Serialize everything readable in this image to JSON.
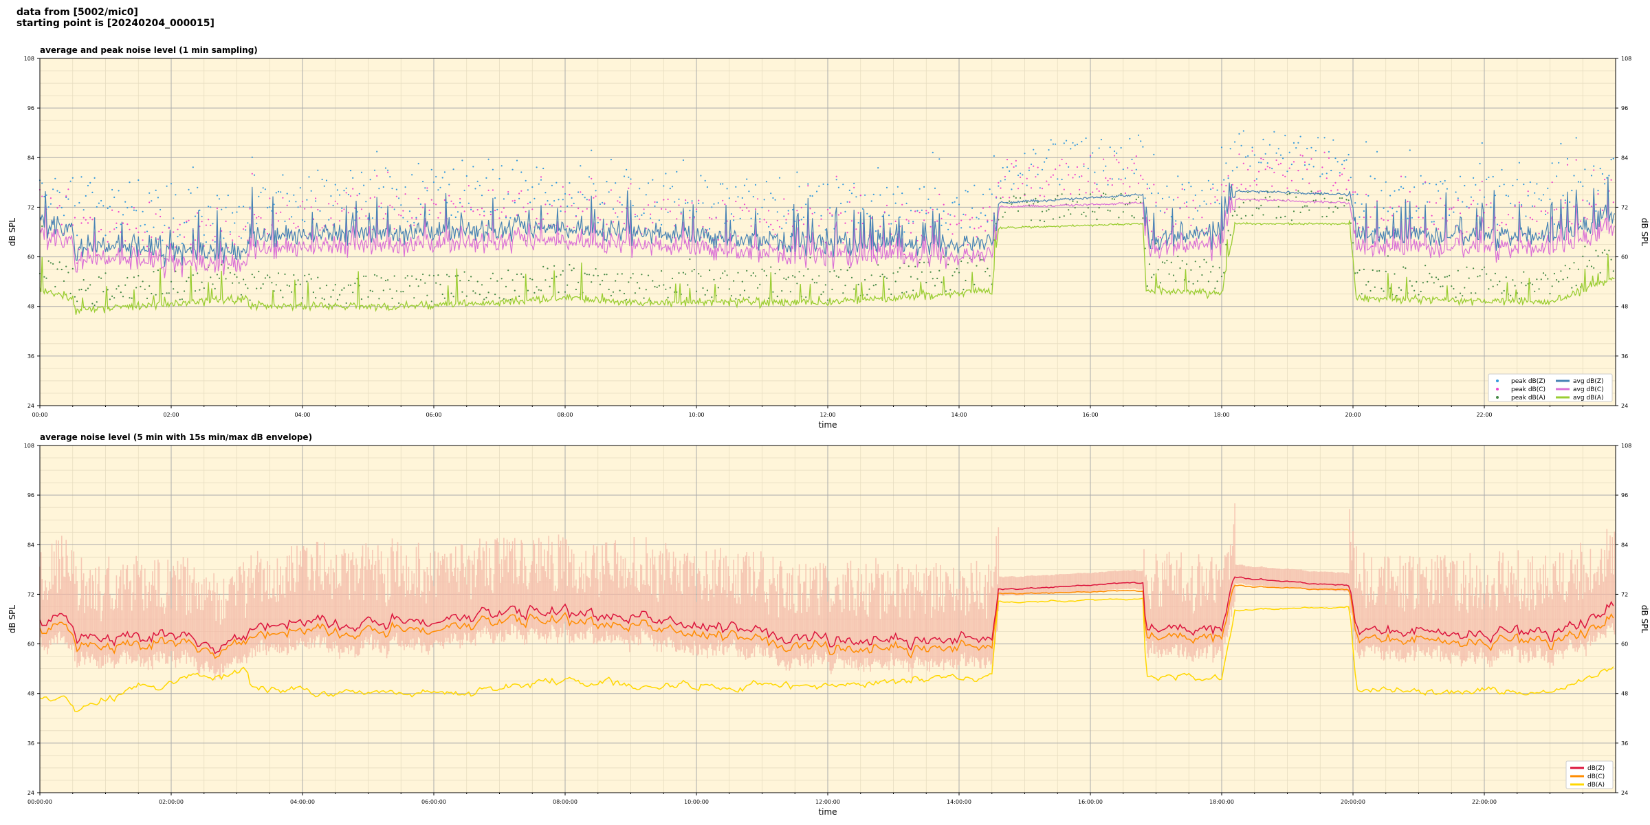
{
  "header": {
    "line1": "data from [5002/mic0]",
    "line2": "starting point is [20240204_000015]"
  },
  "chart_data": [
    {
      "type": "line",
      "title": "average and peak noise level (1 min sampling)",
      "xlabel": "time",
      "ylabel": "dB SPL",
      "ylim": [
        24,
        108
      ],
      "yticks": [
        "24",
        "36",
        "48",
        "60",
        "72",
        "84",
        "96",
        "108"
      ],
      "x_range_hours": [
        0,
        24
      ],
      "xticks": [
        "00:00",
        "02:00",
        "04:00",
        "06:00",
        "08:00",
        "10:00",
        "12:00",
        "14:00",
        "16:00",
        "18:00",
        "20:00",
        "22:00"
      ],
      "grid": true,
      "legend_position": "lower-right",
      "legend": [
        {
          "label": "peak dB(Z)",
          "kind": "point",
          "color": "#3399dd"
        },
        {
          "label": "peak dB(C)",
          "kind": "point",
          "color": "#ee44cc"
        },
        {
          "label": "peak dB(A)",
          "kind": "point",
          "color": "#448844"
        },
        {
          "label": "avg dB(Z)",
          "kind": "line",
          "color": "#4682b4"
        },
        {
          "label": "avg dB(C)",
          "kind": "line",
          "color": "#da70d6"
        },
        {
          "label": "avg dB(A)",
          "kind": "line",
          "color": "#9acd32"
        }
      ],
      "level_profile": {
        "hours": [
          0,
          0.5,
          0.55,
          1.5,
          3.15,
          3.2,
          6.0,
          8.0,
          9.0,
          12.0,
          13.0,
          14.5,
          14.6,
          16.8,
          16.85,
          18.0,
          18.2,
          19.95,
          20.05,
          23.0,
          24.0
        ],
        "avg_z": [
          68,
          67,
          62,
          62,
          61,
          65,
          66,
          67,
          66,
          63,
          63,
          63,
          73,
          75,
          64,
          66,
          76,
          75,
          65,
          65,
          70
        ],
        "avg_c": [
          66,
          65,
          60,
          60,
          59,
          63,
          64,
          65,
          64,
          61,
          61,
          61,
          72,
          73,
          63,
          64,
          74,
          73,
          63,
          63,
          68
        ],
        "avg_a": [
          52,
          50,
          47,
          48,
          50,
          48,
          48,
          50,
          49,
          49,
          50,
          52,
          67,
          68,
          52,
          51,
          68,
          68,
          50,
          49,
          55
        ]
      }
    },
    {
      "type": "line",
      "title": "average noise level (5 min with 15s min/max dB envelope)",
      "xlabel": "time",
      "ylabel": "dB SPL",
      "ylim": [
        24,
        108
      ],
      "yticks": [
        "24",
        "36",
        "48",
        "60",
        "72",
        "84",
        "96",
        "108"
      ],
      "x_range_hours": [
        0,
        24
      ],
      "xticks": [
        "00:00:00",
        "02:00:00",
        "04:00:00",
        "06:00:00",
        "08:00:00",
        "10:00:00",
        "12:00:00",
        "14:00:00",
        "16:00:00",
        "18:00:00",
        "20:00:00",
        "22:00:00"
      ],
      "grid": true,
      "legend_position": "lower-right",
      "legend": [
        {
          "label": "dB(Z)",
          "kind": "line",
          "color": "#dc143c"
        },
        {
          "label": "dB(C)",
          "kind": "line",
          "color": "#ff8c00"
        },
        {
          "label": "dB(A)",
          "kind": "line",
          "color": "#ffd700"
        }
      ],
      "envelope_color": "#f4b9a8",
      "level_profile": {
        "hours": [
          0,
          0.5,
          0.55,
          1.5,
          3.15,
          3.2,
          6.0,
          8.0,
          9.0,
          12.0,
          13.0,
          14.5,
          14.6,
          16.8,
          16.85,
          18.0,
          18.2,
          19.95,
          20.05,
          23.0,
          24.0
        ],
        "db_z": [
          66,
          65,
          61,
          62,
          60,
          64,
          66,
          68,
          66,
          61,
          61,
          62,
          73,
          75,
          64,
          64,
          76,
          74,
          63,
          62,
          70
        ],
        "db_c": [
          64,
          63,
          59,
          60,
          59,
          62,
          64,
          66,
          64,
          59,
          59,
          60,
          72,
          73,
          62,
          62,
          74,
          73,
          61,
          60,
          67
        ],
        "db_a": [
          47,
          46,
          44,
          50,
          53,
          49,
          48,
          51,
          50,
          50,
          51,
          52,
          70,
          71,
          52,
          51,
          68,
          69,
          49,
          48,
          55
        ]
      }
    }
  ],
  "colors": {
    "plot_bg": "#fff5d9",
    "grid_major": "#aaaaaa",
    "grid_minor": "#e6dcc0"
  }
}
